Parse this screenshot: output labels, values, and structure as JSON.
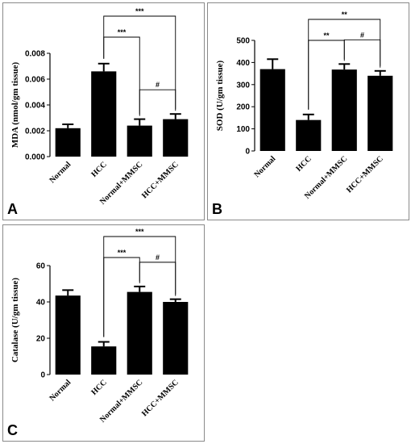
{
  "chart_data": [
    {
      "type": "bar",
      "panel_label": "A",
      "ylabel": "MDA (nmol/gm tissue)",
      "categories": [
        "Normal",
        "HCC",
        "Normal+MMSC",
        "HCC+MMSC"
      ],
      "values": [
        0.0022,
        0.0066,
        0.0024,
        0.0029
      ],
      "errors": [
        0.0003,
        0.0006,
        0.0005,
        0.0004
      ],
      "ylim": [
        0,
        0.008
      ],
      "yticks": [
        "0.000",
        "0.002",
        "0.004",
        "0.006",
        "0.008"
      ],
      "significance": [
        {
          "from": 1,
          "to": 2,
          "label": "***"
        },
        {
          "from": 1,
          "to": 3,
          "label": "***"
        },
        {
          "from": 2,
          "to": 3,
          "label": "#"
        }
      ]
    },
    {
      "type": "bar",
      "panel_label": "B",
      "ylabel": "SOD (U/gm tissue)",
      "categories": [
        "Normal",
        "HCC",
        "Normal+MMSC",
        "HCC+MMSC"
      ],
      "values": [
        370,
        140,
        368,
        340
      ],
      "errors": [
        45,
        25,
        25,
        22
      ],
      "ylim": [
        0,
        500
      ],
      "yticks": [
        "0",
        "100",
        "200",
        "300",
        "400",
        "500"
      ],
      "significance": [
        {
          "from": 1,
          "to": 2,
          "label": "**"
        },
        {
          "from": 1,
          "to": 3,
          "label": "**"
        },
        {
          "from": 2,
          "to": 3,
          "label": "#"
        }
      ]
    },
    {
      "type": "bar",
      "panel_label": "C",
      "ylabel": "Catalase (U/gm tissue)",
      "categories": [
        "Normal",
        "HCC",
        "Normal+MMSC",
        "HCC+MMSC"
      ],
      "values": [
        43.5,
        15.5,
        45.5,
        40
      ],
      "errors": [
        3,
        2.5,
        3,
        1.5
      ],
      "ylim": [
        0,
        60
      ],
      "yticks": [
        "0",
        "20",
        "40",
        "60"
      ],
      "significance": [
        {
          "from": 1,
          "to": 2,
          "label": "***"
        },
        {
          "from": 1,
          "to": 3,
          "label": "***"
        },
        {
          "from": 2,
          "to": 3,
          "label": "#"
        }
      ]
    }
  ]
}
